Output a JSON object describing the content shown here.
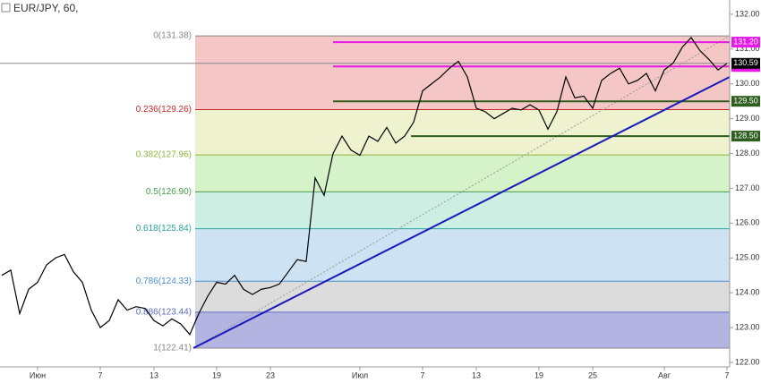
{
  "chart_data": {
    "type": "line",
    "title": "EUR/JPY, 60,",
    "categories": [
      null,
      null,
      null,
      null,
      "Июн",
      null,
      null,
      null,
      null,
      null,
      null,
      "7",
      null,
      null,
      null,
      null,
      null,
      "13",
      null,
      null,
      null,
      null,
      null,
      null,
      "19",
      null,
      null,
      null,
      null,
      null,
      "23",
      null,
      null,
      null,
      null,
      null,
      null,
      null,
      null,
      null,
      "Июл",
      null,
      null,
      null,
      null,
      null,
      null,
      "7",
      null,
      null,
      null,
      null,
      null,
      "13",
      null,
      null,
      null,
      null,
      null,
      null,
      "19",
      null,
      null,
      null,
      null,
      null,
      "25",
      null,
      null,
      null,
      null,
      null,
      null,
      null,
      "Авг",
      null,
      null,
      null,
      null,
      null,
      null,
      "7"
    ],
    "series": [
      {
        "color": "#000000",
        "values": [
          124.5,
          124.65,
          123.4,
          124.1,
          124.3,
          124.8,
          125.0,
          125.1,
          124.6,
          124.3,
          123.5,
          123.0,
          123.2,
          123.8,
          123.5,
          123.6,
          123.55,
          123.2,
          123.05,
          123.25,
          123.1,
          122.8,
          123.4,
          123.9,
          124.3,
          124.25,
          124.5,
          124.1,
          123.95,
          124.1,
          124.15,
          124.25,
          124.6,
          124.95,
          124.9,
          127.3,
          126.8,
          128.0,
          128.5,
          128.1,
          127.95,
          128.5,
          128.35,
          128.75,
          128.3,
          128.5,
          128.9,
          129.8,
          130.0,
          130.2,
          130.45,
          130.65,
          130.2,
          129.3,
          129.2,
          129.0,
          129.15,
          129.3,
          129.25,
          129.4,
          129.25,
          128.7,
          129.2,
          130.2,
          129.6,
          129.65,
          129.3,
          130.1,
          130.3,
          130.45,
          130.0,
          130.1,
          130.3,
          129.8,
          130.4,
          130.6,
          131.05,
          131.33,
          130.95,
          130.7,
          130.4,
          130.59
        ]
      }
    ],
    "ylim": [
      121.87,
      132.41
    ],
    "yticks": [
      {
        "value": 122,
        "label": "122.00"
      },
      {
        "value": 123,
        "label": "123.00"
      },
      {
        "value": 124,
        "label": "124.00"
      },
      {
        "value": 125,
        "label": "125.00"
      },
      {
        "value": 126,
        "label": "126.00"
      },
      {
        "value": 127,
        "label": "127.00"
      },
      {
        "value": 128,
        "label": "128.00"
      },
      {
        "value": 129,
        "label": "129.00"
      },
      {
        "value": 130,
        "label": "130.00"
      },
      {
        "value": 131,
        "label": "131.00"
      },
      {
        "value": 132,
        "label": "132.00"
      }
    ],
    "fib_levels": [
      {
        "value": 131.38,
        "label": "0(131.38)",
        "color": "#888888",
        "fill": "#f4c6c6"
      },
      {
        "value": 129.26,
        "label": "0.236(129.26)",
        "color": "#c62828",
        "fill": "#eef2cf"
      },
      {
        "value": 127.96,
        "label": "0.382(127.96)",
        "color": "#8db33a",
        "fill": "#d5f2c8"
      },
      {
        "value": 126.9,
        "label": "0.5(126.90)",
        "color": "#43a047",
        "fill": "#cdeee2"
      },
      {
        "value": 125.84,
        "label": "0.618(125.84)",
        "color": "#26a69a",
        "fill": "#cde2f2"
      },
      {
        "value": 124.33,
        "label": "0.786(124.33)",
        "color": "#4a8fcf",
        "fill": "#dcdcdc"
      },
      {
        "value": 123.44,
        "label": "0.886(123.44)",
        "color": "#5c6bc0",
        "fill": "#b4b4e2"
      },
      {
        "value": 122.41,
        "label": "1(122.41)",
        "color": "#888888"
      }
    ],
    "levels": [
      {
        "value": 131.2,
        "label": "131.20",
        "color": "#e619e6"
      },
      {
        "value": 130.5,
        "label": "130.50",
        "color": "#e619e6"
      },
      {
        "value": 129.5,
        "label": "129.50",
        "color": "#2e5e1e"
      },
      {
        "value": 128.5,
        "label": "128.50",
        "color": "#2e5e1e"
      }
    ],
    "price": {
      "value": 130.59,
      "label": "130.59",
      "color": "#000000"
    },
    "trendline": {
      "start": 122.41,
      "end": 130.2,
      "color": "#1a1ab8"
    }
  }
}
